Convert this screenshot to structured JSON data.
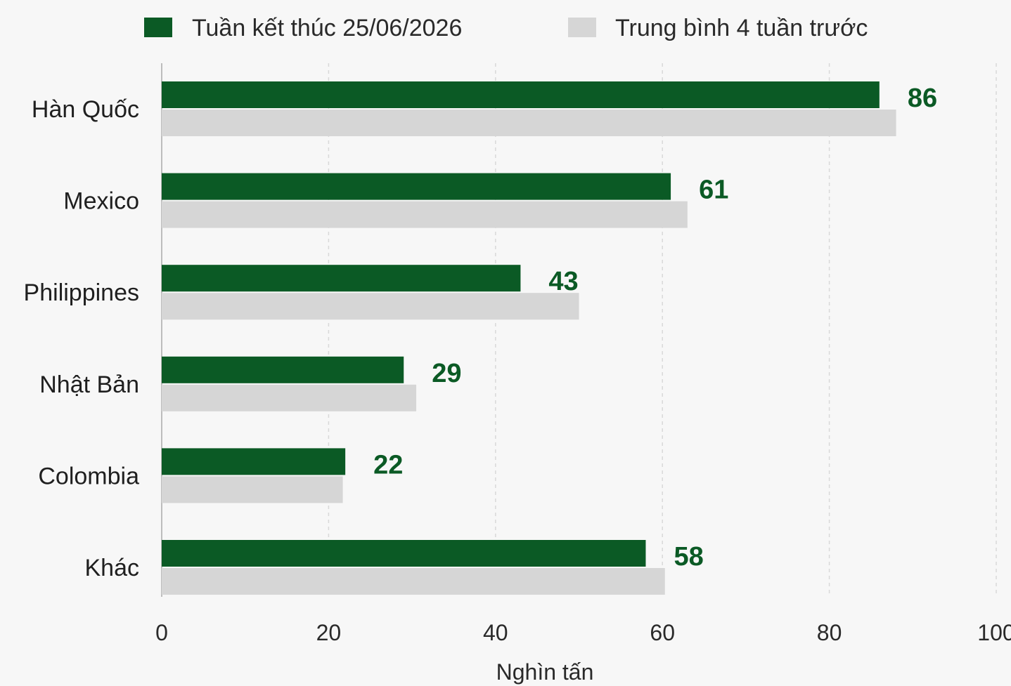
{
  "chart_data": {
    "type": "bar",
    "orientation": "horizontal",
    "categories": [
      "Hàn Quốc",
      "Mexico",
      "Philippines",
      "Nhật Bản",
      "Colombia",
      "Khác"
    ],
    "series": [
      {
        "name": "Tuần kết thúc 25/06/2026",
        "values": [
          86,
          61,
          43,
          29,
          22,
          58
        ],
        "color": "#0b5a25"
      },
      {
        "name": "Trung bình 4 tuần trước",
        "values": [
          88,
          63,
          50,
          30.5,
          21.7,
          60.3
        ],
        "color": "#d6d6d6"
      }
    ],
    "data_labels": [
      "86",
      "61",
      "43",
      "29",
      "22",
      "58"
    ],
    "xlim": [
      0,
      100
    ],
    "xticks": [
      0,
      20,
      40,
      60,
      80,
      100
    ],
    "xlabel": "Nghìn tấn",
    "ylabel": "",
    "grid": "vertical dashed",
    "legend_position": "top"
  }
}
